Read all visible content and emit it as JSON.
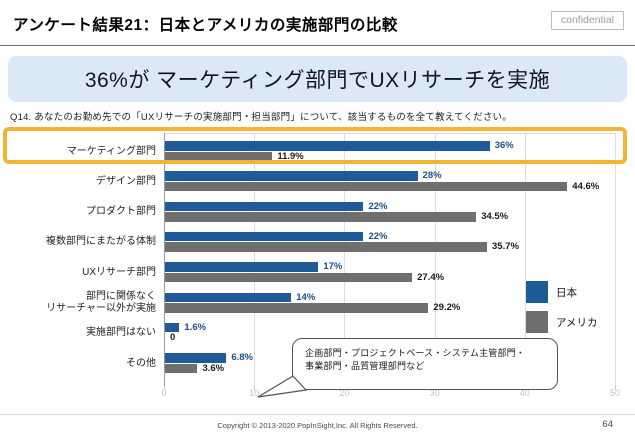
{
  "header": {
    "title": "アンケート結果21：日本とアメリカの実施部門の比較",
    "confidential_label": "confidential"
  },
  "banner": {
    "headline": "36%が マーケティング部門でUXリサーチを実施"
  },
  "question": {
    "text": "Q14.  あなたのお勤め先での「UXリサーチの実施部門・担当部門」について、該当するものを全て教えてください。"
  },
  "chart_data": {
    "type": "bar",
    "orientation": "horizontal",
    "categories": [
      "マーケティング部門",
      "デザイン部門",
      "プロダクト部門",
      "複数部門にまたがる体制",
      "UXリサーチ部門",
      "部門に関係なく\nリサーチャー以外が実施",
      "実施部門はない",
      "その他"
    ],
    "series": [
      {
        "name": "日本",
        "color": "#1f5b99",
        "label_color": "#1b4e89",
        "values": [
          36,
          28,
          22,
          22,
          17,
          14,
          1.6,
          6.8
        ],
        "labels": [
          "36%",
          "28%",
          "22%",
          "22%",
          "17%",
          "14%",
          "1.6%",
          "6.8%"
        ]
      },
      {
        "name": "アメリカ",
        "color": "#6f6f6f",
        "label_color": "#1a1a1a",
        "values": [
          11.9,
          44.6,
          34.5,
          35.7,
          27.4,
          29.2,
          0,
          3.6
        ],
        "labels": [
          "11.9%",
          "44.6%",
          "34.5%",
          "35.7%",
          "27.4%",
          "29.2%",
          "0",
          "3.6%"
        ]
      }
    ],
    "x_ticks": [
      0,
      10,
      20,
      30,
      40,
      50
    ],
    "xlim": [
      0,
      50
    ],
    "grid": true,
    "legend_position": "right-middle",
    "highlight_category_index": 0,
    "highlight_color": "#f1b434",
    "value_suffix": "%"
  },
  "callout": {
    "line1": "企画部門・プロジェクトベース・システム主管部門・",
    "line2": "事業部門・品質管理部門など"
  },
  "footer": {
    "copyright": "Copyright © 2013-2020  PopInSight,Inc.  All Rights Reserved.",
    "page_number": "64"
  }
}
